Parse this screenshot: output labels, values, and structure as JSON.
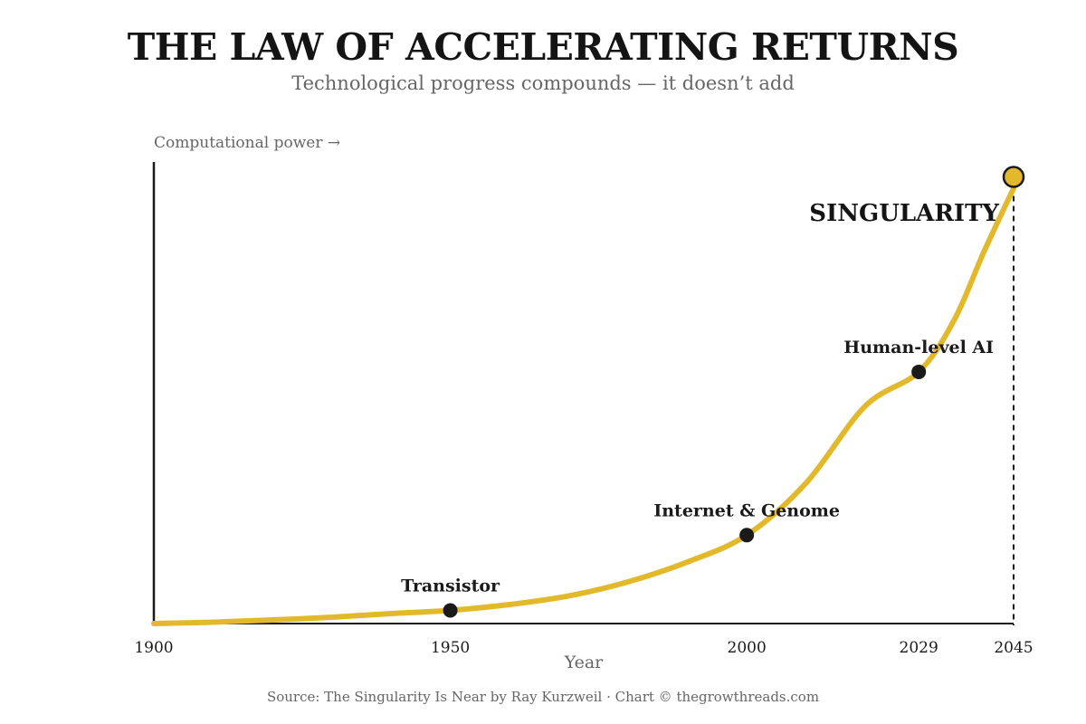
{
  "chart_data": {
    "type": "line",
    "title": "THE LAW OF ACCELERATING RETURNS",
    "subtitle": "Technological progress compounds — it doesn’t add",
    "ylabel": "Computational power →",
    "xlabel": "Year",
    "source": "Source: The Singularity Is Near by Ray Kurzweil · Chart © thegrowthreads.com",
    "xlim": [
      1900,
      2045
    ],
    "ylim": [
      0,
      100
    ],
    "y_ticks_shown": false,
    "grid": false,
    "x_ticks": [
      {
        "value": 1900,
        "label": "1900"
      },
      {
        "value": 1950,
        "label": "1950"
      },
      {
        "value": 2000,
        "label": "2000"
      },
      {
        "value": 2029,
        "label": "2029"
      },
      {
        "value": 2045,
        "label": "2045"
      }
    ],
    "series": [
      {
        "color": "#e3b92c",
        "x": [
          1900,
          1910,
          1920,
          1930,
          1940,
          1950,
          1960,
          1970,
          1980,
          1990,
          2000,
          2010,
          2020,
          2029,
          2035,
          2040,
          2045
        ],
        "y": [
          0,
          0.3,
          0.8,
          1.4,
          2.2,
          2.9,
          4.2,
          6.1,
          9.2,
          13.6,
          19.5,
          31,
          48,
          55.5,
          67,
          82,
          96
        ]
      }
    ],
    "milestones": [
      {
        "name": "Transistor",
        "x": 1950,
        "y": 2.9
      },
      {
        "name": "Internet & Genome",
        "x": 2000,
        "y": 19.5
      },
      {
        "name": "Human-level AI",
        "x": 2029,
        "y": 55.5
      }
    ],
    "endpoint": {
      "name": "SINGULARITY",
      "x": 2045,
      "y": 98.5,
      "color": "#e3b92c"
    },
    "colors": {
      "curve": "#e3b92c",
      "marker": "#1a1a1a",
      "axis": "#1a1a1a",
      "muted_text": "#666666"
    }
  }
}
